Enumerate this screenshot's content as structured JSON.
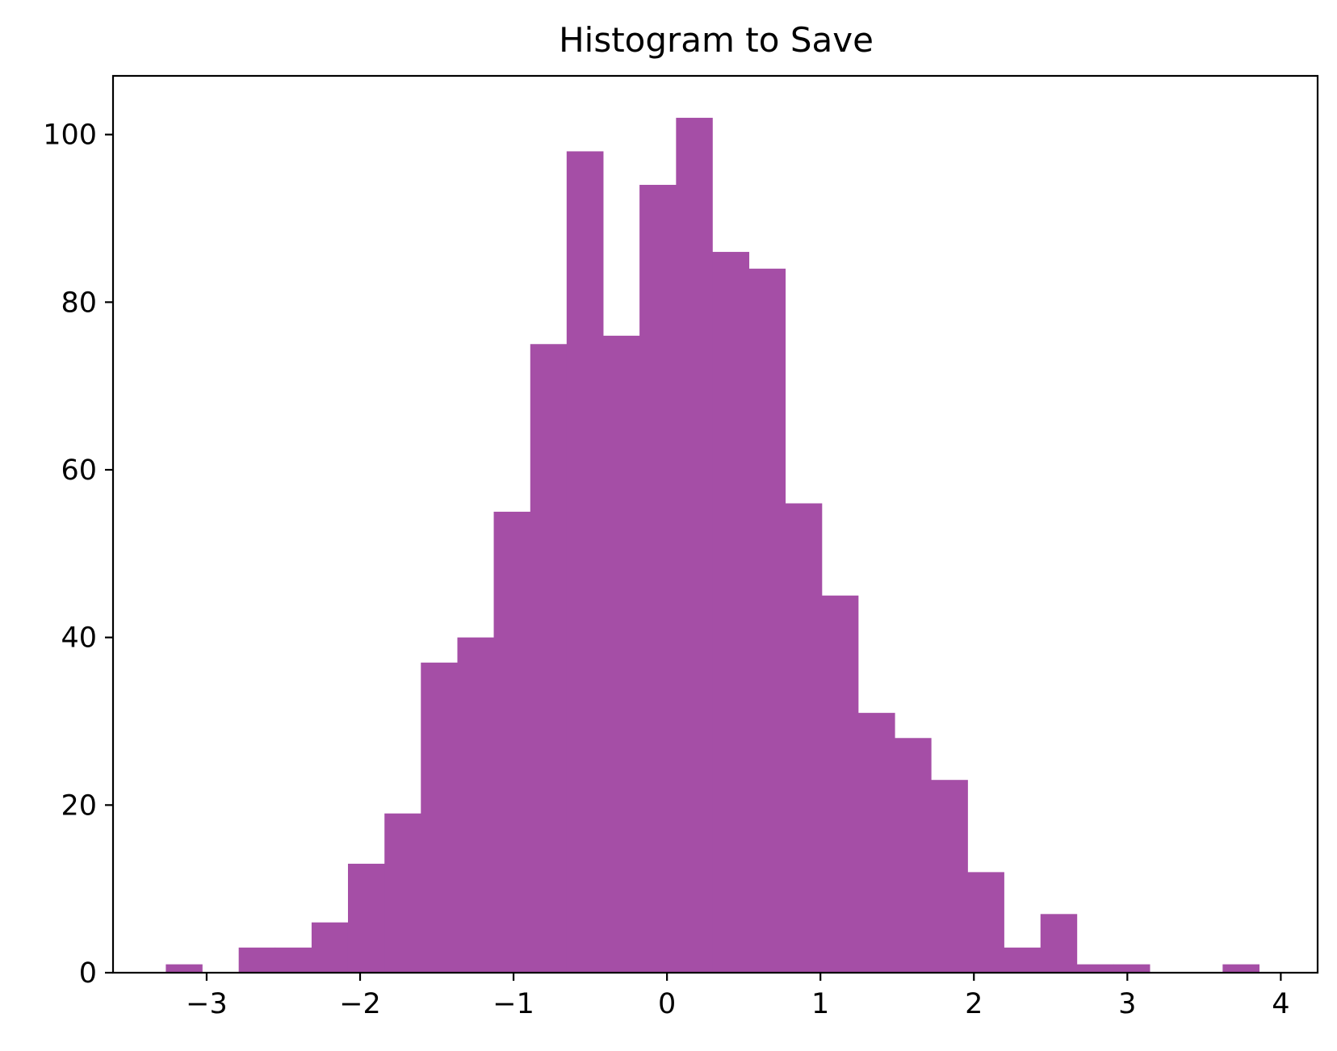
{
  "chart_data": {
    "type": "bar",
    "title": "Histogram to Save",
    "xlabel": "",
    "ylabel": "",
    "bar_color": "#a54ea6",
    "xlim": [
      -3.61,
      4.24
    ],
    "ylim": [
      0,
      107
    ],
    "grid": false,
    "legend": "none",
    "bin_edges": [
      -3.266,
      -3.029,
      -2.791,
      -2.554,
      -2.316,
      -2.079,
      -1.841,
      -1.604,
      -1.366,
      -1.129,
      -0.891,
      -0.654,
      -0.416,
      -0.179,
      0.059,
      0.296,
      0.534,
      0.771,
      1.009,
      1.246,
      1.484,
      1.721,
      1.959,
      2.196,
      2.434,
      2.671,
      2.909,
      3.146,
      3.384,
      3.621,
      3.859
    ],
    "values": [
      1,
      0,
      3,
      3,
      6,
      13,
      19,
      37,
      40,
      55,
      75,
      98,
      76,
      94,
      102,
      86,
      84,
      56,
      45,
      31,
      28,
      23,
      12,
      3,
      7,
      1,
      1,
      0,
      0,
      1
    ],
    "x_ticks": [
      {
        "value": -3,
        "label": "−3"
      },
      {
        "value": -2,
        "label": "−2"
      },
      {
        "value": -1,
        "label": "−1"
      },
      {
        "value": 0,
        "label": "0"
      },
      {
        "value": 1,
        "label": "1"
      },
      {
        "value": 2,
        "label": "2"
      },
      {
        "value": 3,
        "label": "3"
      },
      {
        "value": 4,
        "label": "4"
      }
    ],
    "y_ticks": [
      {
        "value": 0,
        "label": "0"
      },
      {
        "value": 20,
        "label": "20"
      },
      {
        "value": 40,
        "label": "40"
      },
      {
        "value": 60,
        "label": "60"
      },
      {
        "value": 80,
        "label": "80"
      },
      {
        "value": 100,
        "label": "100"
      }
    ]
  }
}
